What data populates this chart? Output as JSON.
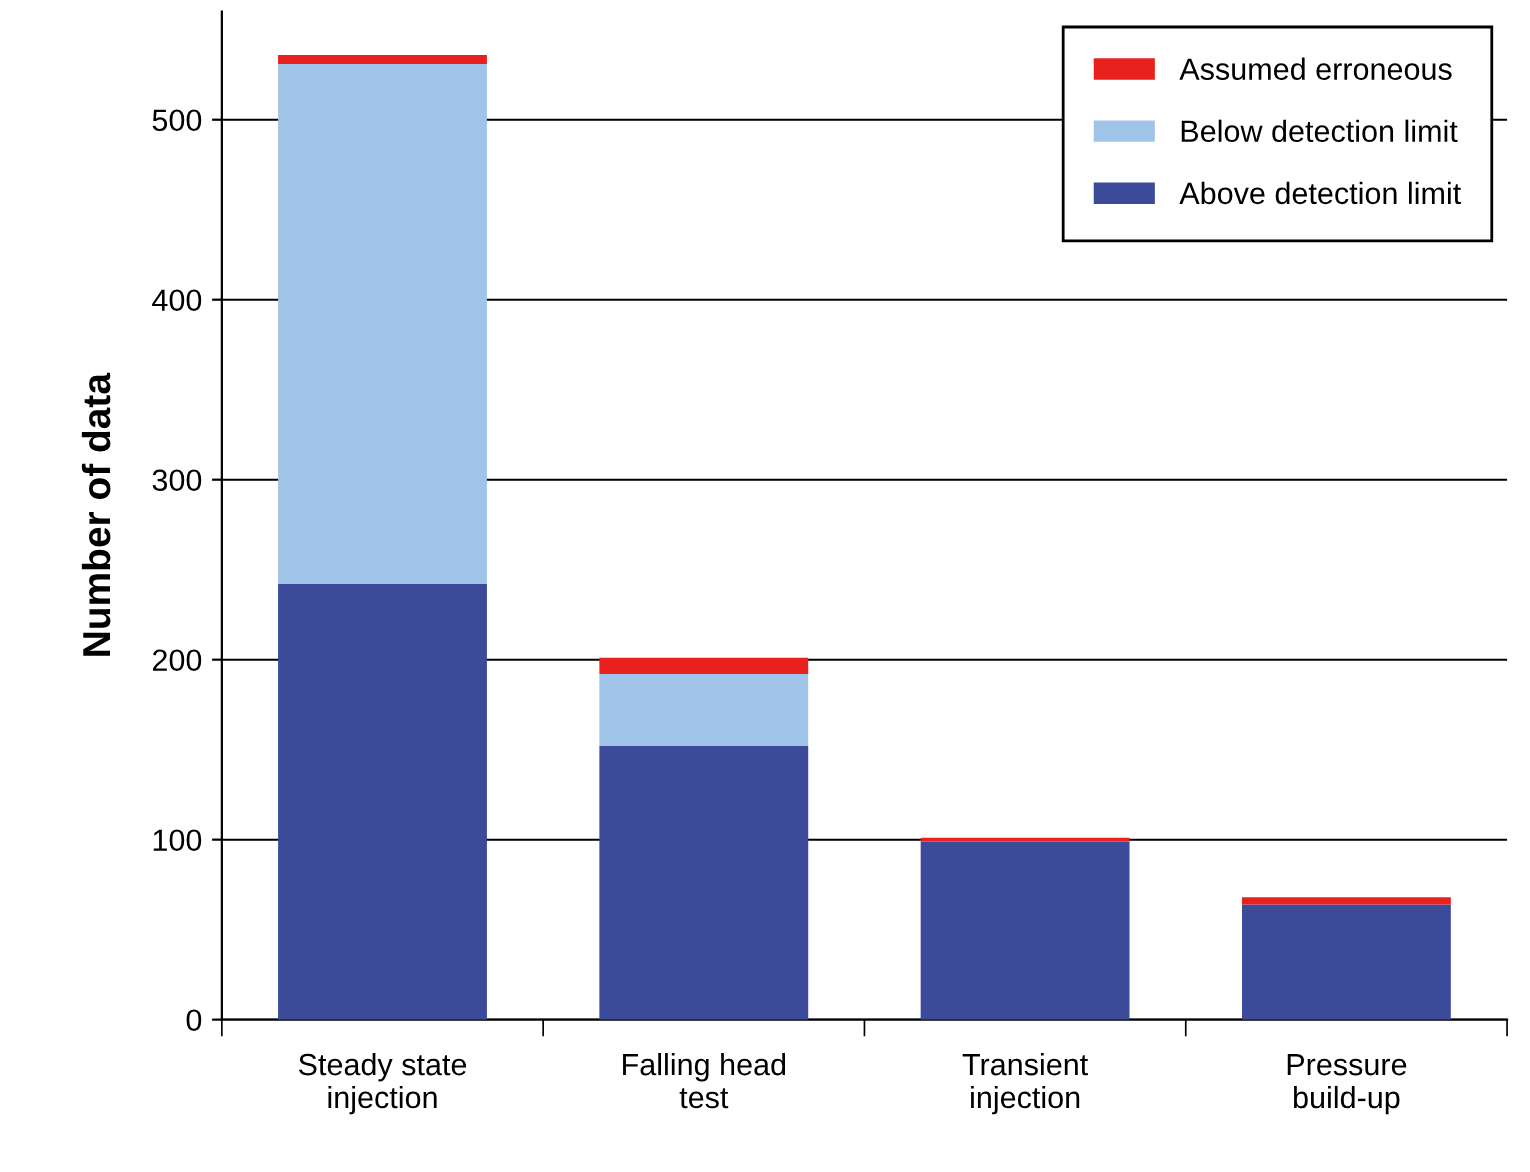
{
  "chart_data": {
    "type": "bar",
    "stacked": true,
    "ylabel": "Number of data",
    "categories": [
      "Steady state\ninjection",
      "Falling head\ntest",
      "Transient\ninjection",
      "Pressure\nbuild-up"
    ],
    "series": [
      {
        "name": "Above detection limit",
        "color": "#3c4a9a",
        "values": [
          242,
          152,
          99,
          64
        ]
      },
      {
        "name": "Below detection limit",
        "color": "#a0c4e8",
        "values": [
          289,
          40,
          0,
          0
        ]
      },
      {
        "name": "Assumed erroneous",
        "color": "#e8201e",
        "values": [
          5,
          9,
          2,
          4
        ]
      }
    ],
    "ylim": [
      0,
      560
    ],
    "yticks": [
      0,
      100,
      200,
      300,
      400,
      500
    ],
    "grid": "y",
    "legend": "top right"
  }
}
